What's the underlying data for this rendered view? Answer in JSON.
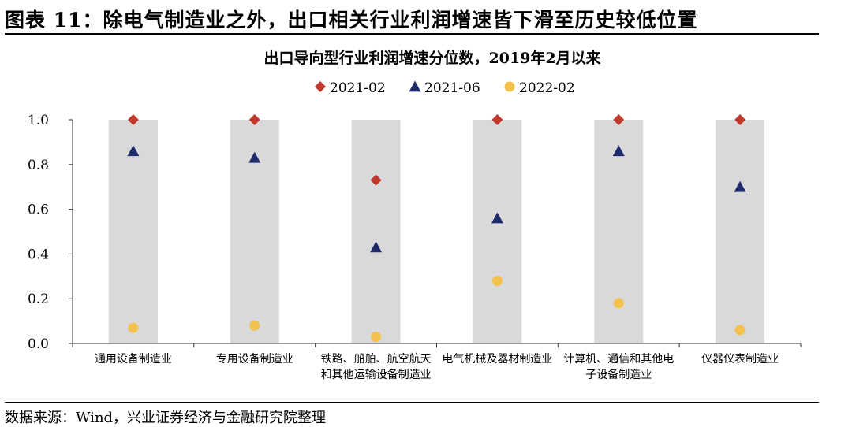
{
  "figure": {
    "title": "图表 11：除电气制造业之外，出口相关行业利润增速皆下滑至历史较低位置",
    "source": "数据来源：Wind，兴业证券经济与金融研究院整理"
  },
  "colors": {
    "band": "#d9d9d9",
    "s2021_02": "#c0392b",
    "s2021_06": "#1f2a6b",
    "s2022_02": "#f2c14e",
    "axis": "#333333"
  },
  "chart_data": {
    "type": "scatter",
    "title": "出口导向型行业利润增速分位数，2019年2月以来",
    "xlabel": "",
    "ylabel": "",
    "ylim": [
      0,
      1.0
    ],
    "yticks": [
      "0.0",
      "0.2",
      "0.4",
      "0.6",
      "0.8",
      "1.0"
    ],
    "legend_position": "top-center",
    "categories": [
      [
        "通用设备制造业"
      ],
      [
        "专用设备制造业"
      ],
      [
        "铁路、船舶、航空航天",
        "和其他运输设备制造业"
      ],
      [
        "电气机械及器材制造业"
      ],
      [
        "计算机、通信和其他电",
        "子设备制造业"
      ],
      [
        "仪器仪表制造业"
      ]
    ],
    "series": [
      {
        "name": "2021-02",
        "marker": "diamond",
        "color": "#c0392b",
        "values": [
          1.0,
          1.0,
          0.73,
          1.0,
          1.0,
          1.0
        ]
      },
      {
        "name": "2021-06",
        "marker": "triangle",
        "color": "#1f2a6b",
        "values": [
          0.86,
          0.83,
          0.43,
          0.56,
          0.86,
          0.7
        ]
      },
      {
        "name": "2022-02",
        "marker": "circle",
        "color": "#f2c14e",
        "values": [
          0.07,
          0.08,
          0.03,
          0.28,
          0.18,
          0.06
        ]
      }
    ]
  }
}
